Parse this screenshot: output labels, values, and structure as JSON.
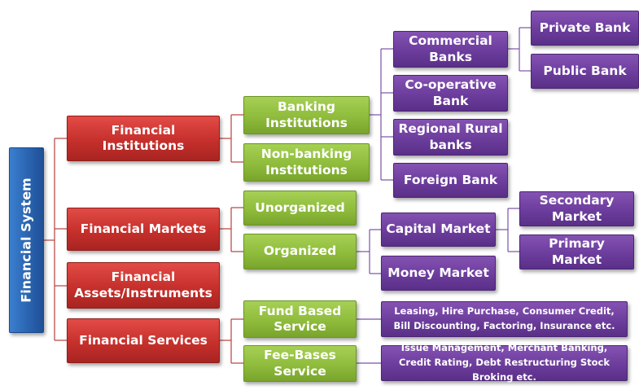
{
  "root": "Financial System",
  "level1": {
    "institutions": "Financial Institutions",
    "markets": "Financial Markets",
    "assets": "Financial Assets/Instruments",
    "services": "Financial Services"
  },
  "level2": {
    "banking": "Banking Institutions",
    "nonbanking": "Non-banking Institutions",
    "unorganized": "Unorganized",
    "organized": "Organized",
    "fund_based": "Fund Based Service",
    "fee_based": "Fee-Bases Service"
  },
  "level3": {
    "commercial": "Commercial Banks",
    "cooperative": "Co-operative Bank",
    "regional": "Regional Rural banks",
    "foreign": "Foreign Bank",
    "capital": "Capital Market",
    "money": "Money Market",
    "fund_desc": "Leasing, Hire Purchase, Consumer Credit, Bill Discounting, Factoring, Insurance etc.",
    "fee_desc": "Issue Management, Merchant Banking, Credit Rating, Debt Restructuring Stock Broking etc."
  },
  "level4": {
    "private": "Private Bank",
    "public": "Public Bank",
    "secondary": "Secondary Market",
    "primary": "Primary Market"
  },
  "colors": {
    "root": "#2a64b0",
    "level1": "#c6302c",
    "level2": "#8fbc3c",
    "level3": "#6c3d9c",
    "connector": "#b8403c"
  }
}
